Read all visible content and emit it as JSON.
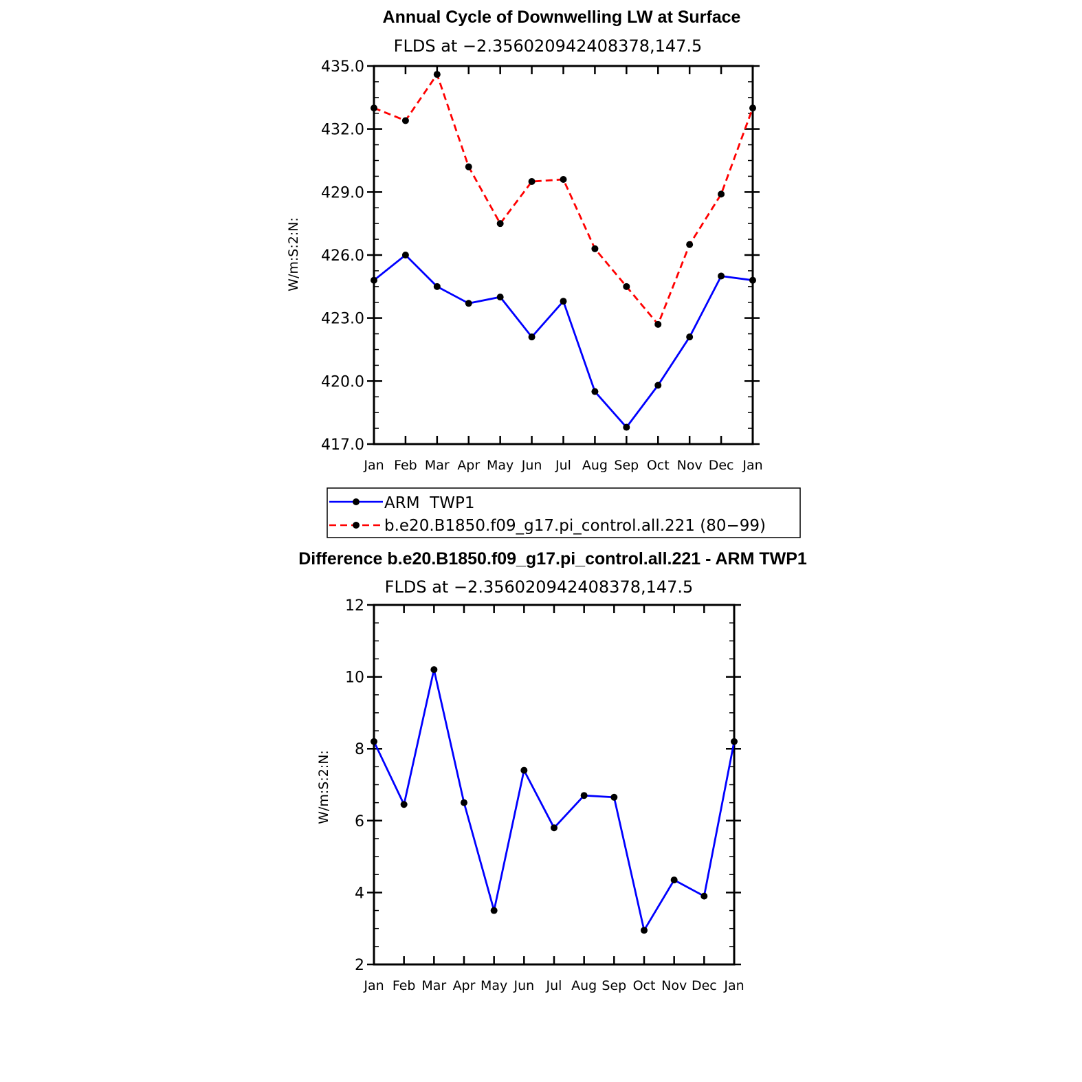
{
  "chart_data": [
    {
      "type": "line",
      "title": "Annual Cycle of Downwelling LW at Surface",
      "subtitle": "FLDS at −2.356020942408378,147.5",
      "xlabel": "",
      "ylabel": "W/m:S:2:N:",
      "categories": [
        "Jan",
        "Feb",
        "Mar",
        "Apr",
        "May",
        "Jun",
        "Jul",
        "Aug",
        "Sep",
        "Oct",
        "Nov",
        "Dec",
        "Jan"
      ],
      "ylim": [
        417.0,
        435.0
      ],
      "yticks": [
        "417.0",
        "420.0",
        "423.0",
        "426.0",
        "429.0",
        "432.0",
        "435.0"
      ],
      "series": [
        {
          "name": "ARM  TWP1",
          "color": "#0000ff",
          "dash": false,
          "values": [
            424.8,
            426.0,
            424.5,
            423.7,
            424.0,
            422.1,
            423.8,
            419.5,
            417.8,
            419.8,
            422.1,
            425.0,
            424.8
          ]
        },
        {
          "name": "b.e20.B1850.f09_g17.pi_control.all.221 (80−99)",
          "color": "#ff0000",
          "dash": true,
          "values": [
            433.0,
            432.4,
            434.6,
            430.2,
            427.5,
            429.5,
            429.6,
            426.3,
            424.5,
            422.7,
            426.5,
            428.9,
            433.0
          ]
        }
      ],
      "legend": "below",
      "grid": false
    },
    {
      "type": "line",
      "title": "Difference b.e20.B1850.f09_g17.pi_control.all.221 - ARM TWP1",
      "subtitle": "FLDS at −2.356020942408378,147.5",
      "xlabel": "",
      "ylabel": "W/m:S:2:N:",
      "categories": [
        "Jan",
        "Feb",
        "Mar",
        "Apr",
        "May",
        "Jun",
        "Jul",
        "Aug",
        "Sep",
        "Oct",
        "Nov",
        "Dec",
        "Jan"
      ],
      "ylim": [
        2,
        12
      ],
      "yticks": [
        "2",
        "4",
        "6",
        "8",
        "10",
        "12"
      ],
      "series": [
        {
          "color": "#0000ff",
          "dash": false,
          "values": [
            8.2,
            6.45,
            10.2,
            6.5,
            3.5,
            7.4,
            5.8,
            6.7,
            6.65,
            2.95,
            4.35,
            3.9,
            8.2
          ]
        }
      ],
      "grid": false
    }
  ]
}
